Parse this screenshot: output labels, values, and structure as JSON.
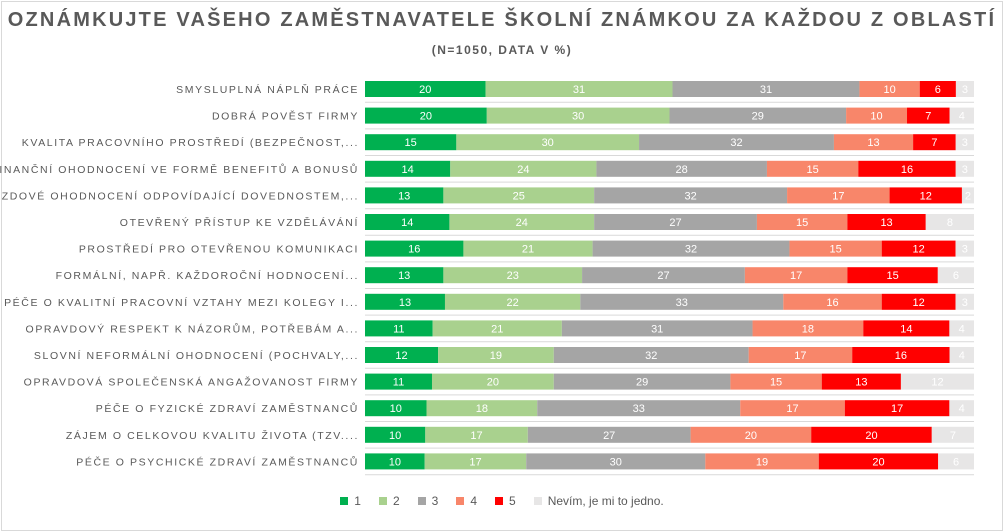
{
  "chart_data": {
    "type": "bar",
    "orientation": "horizontal",
    "stacked": "100%",
    "title": "OZNÁMKUJTE VAŠEHO ZAMĚSTNAVATELE ŠKOLNÍ ZNÁMKOU ZA KAŽDOU Z OBLASTÍ",
    "subtitle": "(N=1050, DATA V %)",
    "legend_position": "bottom",
    "grid": false,
    "categories": [
      "SMYSLUPLNÁ NÁPLŇ PRÁCE",
      "DOBRÁ POVĚST FIRMY",
      "KVALITA PRACOVNÍHO PROSTŘEDÍ (BEZPEČNOST,...",
      "FINANČNÍ OHODNOCENÍ VE FORMĚ BENEFITŮ A BONUSŮ",
      "MZDOVÉ OHODNOCENÍ ODPOVÍDAJÍCÍ DOVEDNOSTEM,...",
      "OTEVŘENÝ PŘÍSTUP KE VZDĚLÁVÁNÍ",
      "PROSTŘEDÍ PRO OTEVŘENOU KOMUNIKACI",
      "FORMÁLNÍ, NAPŘ. KAŽDOROČNÍ HODNOCENÍ...",
      "PÉČE O KVALITNÍ PRACOVNÍ VZTAHY MEZI KOLEGY I...",
      "OPRAVDOVÝ RESPEKT K NÁZORŮM, POTŘEBÁM A...",
      "SLOVNÍ NEFORMÁLNÍ OHODNOCENÍ (POCHVALY,...",
      "OPRAVDOVÁ SPOLEČENSKÁ ANGAŽOVANOST FIRMY",
      "PÉČE O FYZICKÉ ZDRAVÍ ZAMĚSTNANCŮ",
      "ZÁJEM O CELKOVOU KVALITU ŽIVOTA (TZV....",
      "PÉČE O PSYCHICKÉ ZDRAVÍ ZAMĚSTNANCŮ"
    ],
    "series": [
      {
        "name": "1",
        "color": "#00b050",
        "values": [
          20,
          20,
          15,
          14,
          13,
          14,
          16,
          13,
          13,
          11,
          12,
          11,
          10,
          10,
          10
        ]
      },
      {
        "name": "2",
        "color": "#a9d18e",
        "values": [
          31,
          30,
          30,
          24,
          25,
          24,
          21,
          23,
          22,
          21,
          19,
          20,
          18,
          17,
          17
        ]
      },
      {
        "name": "3",
        "color": "#a5a5a5",
        "values": [
          31,
          29,
          32,
          28,
          32,
          27,
          32,
          27,
          33,
          31,
          32,
          29,
          33,
          27,
          30
        ]
      },
      {
        "name": "4",
        "color": "#f8866a",
        "values": [
          10,
          10,
          13,
          15,
          17,
          15,
          15,
          17,
          16,
          18,
          17,
          15,
          17,
          20,
          19
        ]
      },
      {
        "name": "5",
        "color": "#ff0000",
        "values": [
          6,
          7,
          7,
          16,
          12,
          13,
          12,
          15,
          12,
          14,
          16,
          13,
          17,
          20,
          20
        ]
      },
      {
        "name": "Nevím, je mi to jedno.",
        "color": "#e7e6e6",
        "values": [
          3,
          4,
          3,
          3,
          2,
          8,
          3,
          6,
          3,
          4,
          4,
          12,
          4,
          7,
          6
        ]
      }
    ]
  }
}
